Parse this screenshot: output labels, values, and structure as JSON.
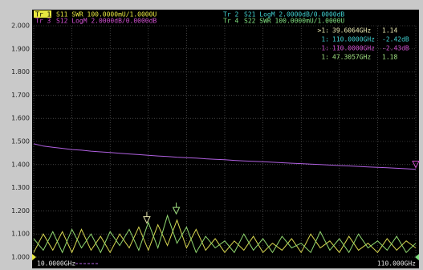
{
  "chart_data": {
    "type": "line",
    "traces": [
      {
        "id": "Tr 1",
        "text": "S11 SWR 100.0000mU/1.0000U",
        "color": "#e8e840"
      },
      {
        "id": "Tr 3",
        "text": "S12 LogM 2.0000dB/0.0000dB",
        "color": "#d050d0"
      },
      {
        "id": "Tr 2",
        "text": "S21 LogM 2.0000dB/0.0000dB",
        "color": "#40d0d0"
      },
      {
        "id": "Tr 4",
        "text": "S22 SWR 100.0000mU/1.0000U",
        "color": "#80e080"
      }
    ],
    "readout": [
      {
        "name": ">1:",
        "x": {
          "value": 39.6064,
          "label": "39.6064GHz"
        },
        "value": 1.14,
        "color": "#e8e8b0"
      },
      {
        "name": "1:",
        "x": {
          "value": 110,
          "label": "110.0000GHz"
        },
        "value": {
          "value": -2.42,
          "label": "-2.42dB"
        },
        "color": "#40d0d0"
      },
      {
        "name": "1:",
        "x": {
          "value": 110,
          "label": "110.0000GHz"
        },
        "value": {
          "value": -2.43,
          "label": "-2.43dB"
        },
        "color": "#d050d0"
      },
      {
        "name": "1:",
        "x": {
          "value": 47.3057,
          "label": "47.3057GHz"
        },
        "value": 1.18,
        "color": "#a0e080"
      }
    ],
    "start_label": "10.0000GHz",
    "stop_label": "110.000GHz",
    "xlim": [
      10,
      110
    ],
    "xticks": [
      10,
      20,
      30,
      40,
      50,
      60,
      70,
      80,
      90,
      100,
      110
    ],
    "ylim": [
      1,
      2
    ],
    "yticks": [
      {
        "value": 1,
        "label": "1.000"
      },
      {
        "value": 1.1,
        "label": "1.100"
      },
      {
        "value": 1.2,
        "label": "1.200"
      },
      {
        "value": 1.3,
        "label": "1.300"
      },
      {
        "value": 1.4,
        "label": "1.400"
      },
      {
        "value": 1.5,
        "label": "1.500"
      },
      {
        "value": 1.6,
        "label": "1.600"
      },
      {
        "value": 1.7,
        "label": "1.700"
      },
      {
        "value": 1.8,
        "label": "1.800"
      },
      {
        "value": 1.9,
        "label": "1.900"
      },
      {
        "value": 2,
        "label": "2.000"
      }
    ],
    "grid": true,
    "x": [
      10,
      12.5,
      15,
      17.5,
      20,
      22.5,
      25,
      27.5,
      30,
      32.5,
      35,
      37.5,
      40,
      42.5,
      45,
      47.5,
      50,
      52.5,
      55,
      57.5,
      60,
      62.5,
      65,
      67.5,
      70,
      72.5,
      75,
      77.5,
      80,
      82.5,
      85,
      87.5,
      90,
      92.5,
      95,
      97.5,
      100,
      102.5,
      105,
      107.5,
      110
    ],
    "series": [
      {
        "name": "S12",
        "color": "#b060e0",
        "values": [
          1.49,
          1.48,
          1.475,
          1.47,
          1.465,
          1.462,
          1.458,
          1.455,
          1.452,
          1.449,
          1.446,
          1.443,
          1.44,
          1.437,
          1.435,
          1.432,
          1.43,
          1.428,
          1.425,
          1.423,
          1.421,
          1.418,
          1.416,
          1.414,
          1.412,
          1.41,
          1.408,
          1.406,
          1.404,
          1.402,
          1.4,
          1.398,
          1.396,
          1.394,
          1.392,
          1.39,
          1.388,
          1.386,
          1.384,
          1.382,
          1.38
        ]
      },
      {
        "name": "S11",
        "color": "#d8d850",
        "values": [
          1.02,
          1.1,
          1.03,
          1.11,
          1.02,
          1.12,
          1.03,
          1.09,
          1.02,
          1.1,
          1.04,
          1.13,
          1.03,
          1.14,
          1.05,
          1.16,
          1.04,
          1.12,
          1.03,
          1.08,
          1.02,
          1.07,
          1.03,
          1.09,
          1.02,
          1.06,
          1.03,
          1.08,
          1.02,
          1.1,
          1.04,
          1.07,
          1.02,
          1.09,
          1.03,
          1.06,
          1.02,
          1.08,
          1.03,
          1.07,
          1.04
        ]
      },
      {
        "name": "S22",
        "color": "#90d870",
        "values": [
          1.08,
          1.03,
          1.11,
          1.02,
          1.12,
          1.04,
          1.1,
          1.02,
          1.11,
          1.05,
          1.12,
          1.03,
          1.15,
          1.04,
          1.18,
          1.06,
          1.13,
          1.02,
          1.09,
          1.04,
          1.07,
          1.02,
          1.1,
          1.03,
          1.08,
          1.02,
          1.09,
          1.04,
          1.06,
          1.02,
          1.11,
          1.03,
          1.08,
          1.02,
          1.1,
          1.04,
          1.07,
          1.03,
          1.09,
          1.02,
          1.06
        ]
      }
    ]
  }
}
